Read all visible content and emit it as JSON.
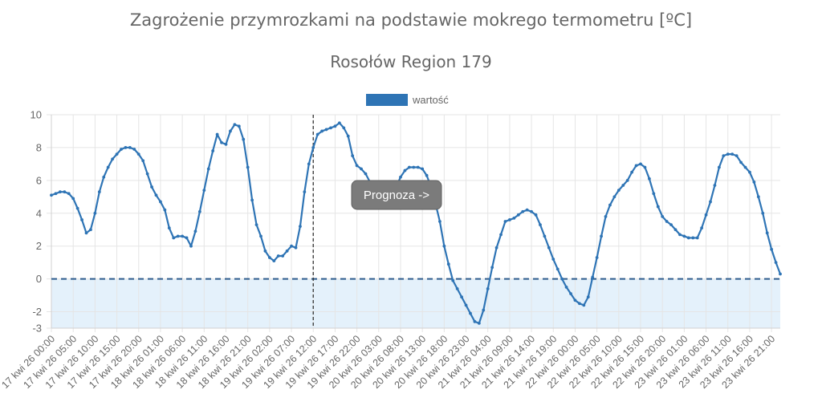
{
  "chart_data": {
    "type": "line",
    "title": "Zagrożenie przymrozkami na podstawie mokrego termometru [ºC]",
    "subtitle": "Rosołów Region 179",
    "legend": {
      "label": "wartość",
      "color": "#2e74b5",
      "position": "top"
    },
    "annotation": "Prognoza ->",
    "forecast_start_index": 60,
    "ylim": [
      -3,
      10
    ],
    "yticks": [
      10,
      8,
      6,
      4,
      2,
      0,
      -2,
      -3
    ],
    "threshold": 0,
    "grid": true,
    "colors": {
      "line": "#2e74b5",
      "point": "#2e74b5",
      "threshold": "#2d5b8c",
      "below_fill": "#e4f1fb",
      "badge": "#7b7b7b",
      "grid": "#e5e5e5"
    },
    "x_labels": [
      "17 kwi 26 00:00",
      "17 kwi 26 05:00",
      "17 kwi 26 10:00",
      "17 kwi 26 15:00",
      "17 kwi 26 20:00",
      "18 kwi 26 01:00",
      "18 kwi 26 06:00",
      "18 kwi 26 11:00",
      "18 kwi 26 16:00",
      "18 kwi 26 21:00",
      "19 kwi 26 02:00",
      "19 kwi 26 07:00",
      "19 kwi 26 12:00",
      "19 kwi 26 17:00",
      "19 kwi 26 22:00",
      "20 kwi 26 03:00",
      "20 kwi 26 08:00",
      "20 kwi 26 13:00",
      "20 kwi 26 18:00",
      "20 kwi 26 23:00",
      "21 kwi 26 04:00",
      "21 kwi 26 09:00",
      "21 kwi 26 14:00",
      "21 kwi 26 19:00",
      "22 kwi 26 00:00",
      "22 kwi 26 05:00",
      "22 kwi 26 10:00",
      "22 kwi 26 15:00",
      "22 kwi 26 20:00",
      "23 kwi 26 01:00",
      "23 kwi 26 06:00",
      "23 kwi 26 11:00",
      "23 kwi 26 16:00",
      "23 kwi 26 21:00"
    ],
    "x_label_step_hours": 5,
    "series": [
      {
        "name": "wartość",
        "values": [
          5.1,
          5.2,
          5.3,
          5.3,
          5.2,
          4.9,
          4.3,
          3.6,
          2.8,
          3.0,
          4.0,
          5.3,
          6.2,
          6.8,
          7.3,
          7.6,
          7.9,
          8.0,
          8.0,
          7.9,
          7.6,
          7.2,
          6.4,
          5.6,
          5.1,
          4.7,
          4.2,
          3.1,
          2.5,
          2.6,
          2.6,
          2.5,
          2.0,
          2.9,
          4.1,
          5.4,
          6.7,
          7.8,
          8.8,
          8.3,
          8.2,
          9.0,
          9.4,
          9.3,
          8.5,
          6.8,
          4.8,
          3.3,
          2.6,
          1.7,
          1.3,
          1.1,
          1.4,
          1.4,
          1.7,
          2.0,
          1.9,
          3.2,
          5.3,
          7.0,
          8.0,
          8.8,
          9.0,
          9.1,
          9.2,
          9.3,
          9.5,
          9.2,
          8.7,
          7.5,
          6.9,
          6.7,
          6.4,
          5.9,
          5.4,
          5.0,
          4.8,
          5.0,
          5.3,
          5.6,
          6.2,
          6.6,
          6.8,
          6.8,
          6.8,
          6.7,
          6.3,
          5.6,
          4.6,
          3.5,
          2.0,
          0.9,
          -0.1,
          -0.6,
          -1.1,
          -1.6,
          -2.1,
          -2.6,
          -2.7,
          -1.9,
          -0.6,
          0.7,
          1.9,
          2.7,
          3.5,
          3.6,
          3.7,
          3.9,
          4.1,
          4.2,
          4.1,
          3.9,
          3.3,
          2.6,
          1.9,
          1.2,
          0.6,
          0.0,
          -0.5,
          -0.9,
          -1.3,
          -1.5,
          -1.6,
          -1.1,
          0.1,
          1.3,
          2.6,
          3.8,
          4.5,
          5.0,
          5.4,
          5.7,
          6.0,
          6.5,
          6.9,
          7.0,
          6.8,
          6.1,
          5.2,
          4.4,
          3.8,
          3.5,
          3.3,
          3.0,
          2.7,
          2.6,
          2.5,
          2.5,
          2.5,
          3.1,
          3.9,
          4.7,
          5.7,
          6.8,
          7.5,
          7.6,
          7.6,
          7.5,
          7.1,
          6.8,
          6.5,
          5.9,
          5.0,
          4.0,
          2.8,
          1.8,
          1.0,
          0.3
        ]
      }
    ]
  }
}
